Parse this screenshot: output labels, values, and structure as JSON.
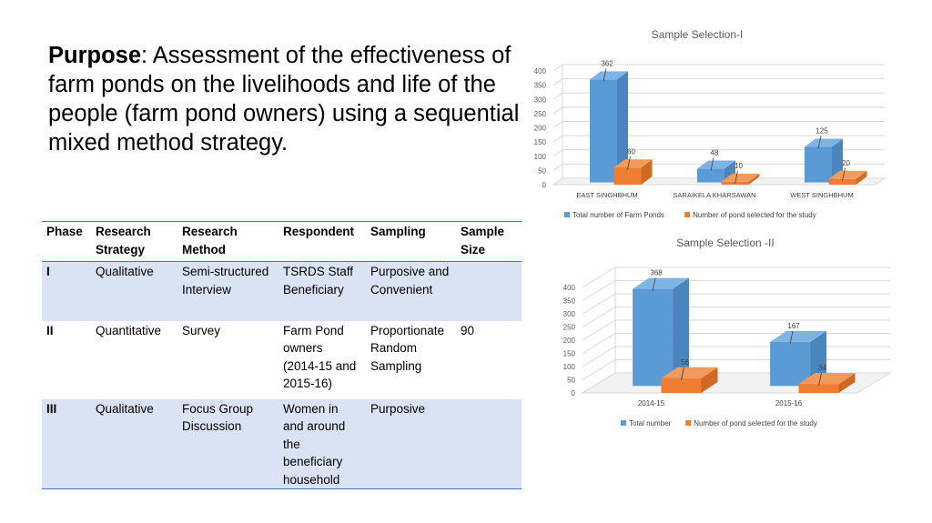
{
  "purpose": {
    "label": "Purpose",
    "text": ": Assessment of the effectiveness of farm ponds on the livelihoods and life of the people (farm pond owners) using a sequential mixed method strategy."
  },
  "table": {
    "headers": [
      "Phase",
      "Research Strategy",
      "Research Method",
      "Respondent",
      "Sampling",
      "Sample Size"
    ],
    "rows": [
      [
        "I",
        "Qualitative",
        "Semi-structured Interview",
        "TSRDS Staff Beneficiary",
        "Purposive and Convenient",
        ""
      ],
      [
        "II",
        "Quantitative",
        "Survey",
        "Farm Pond owners (2014-15 and 2015-16)",
        "Proportionate Random Sampling",
        "90"
      ],
      [
        "III",
        "Qualitative",
        "Focus Group Discussion",
        "Women in and around the beneficiary household",
        "Purposive",
        ""
      ]
    ]
  },
  "colors": {
    "series1": "#5b9bd5",
    "series2": "#ed7d31",
    "table_rule": "#4472c4",
    "row_shade": "#dae3f3"
  },
  "chart_data": [
    {
      "type": "bar",
      "title": "Sample Selection-I",
      "categories": [
        "EAST SINGHBHUM",
        "SARAIKELA KHARSAWAN",
        "WEST SINGHBHUM"
      ],
      "series": [
        {
          "name": "Total number of Farm Ponds",
          "values": [
            362,
            48,
            125
          ]
        },
        {
          "name": "Number of pond selected for the study",
          "values": [
            60,
            10,
            20
          ]
        }
      ],
      "ylim": [
        0,
        400
      ],
      "yticks": [
        0,
        50,
        100,
        150,
        200,
        250,
        300,
        350,
        400
      ],
      "grid": true,
      "legend": "bottom"
    },
    {
      "type": "bar",
      "title": "Sample Selection -II",
      "categories": [
        "2014-15",
        "2015-16"
      ],
      "series": [
        {
          "name": "Total number",
          "values": [
            368,
            167
          ]
        },
        {
          "name": "Number of pond selected for the study",
          "values": [
            56,
            34
          ]
        }
      ],
      "ylim": [
        0,
        400
      ],
      "yticks": [
        0,
        50,
        100,
        150,
        200,
        250,
        300,
        350,
        400
      ],
      "grid": true,
      "legend": "bottom"
    }
  ]
}
